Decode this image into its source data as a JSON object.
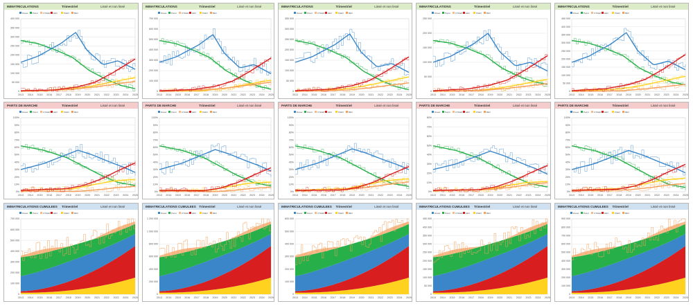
{
  "colors": {
    "rowHeaders": [
      "#dcebc8",
      "#f4cccc",
      "#cfe0f0"
    ],
    "Diesel": "#3a86c8",
    "Petrol": "#27b04a",
    "HEV": "#d81e1e",
    "PHEV": "#ffd21f",
    "BEV": "#f5a05a",
    "OTHER": "#f5b98a"
  },
  "legend": [
    "Diesel",
    "Petrol",
    "OTHER",
    "HEV",
    "PHEV",
    "BEV"
  ],
  "rows": [
    {
      "title": "IMMATRICULATIONS",
      "period": "Trimestriel",
      "label": "Lissé et non lissé",
      "panels": [
        {
          "yticks": [
            "400 000",
            "350 000",
            "300 000",
            "250 000",
            "200 000",
            "150 000",
            "100 000",
            "50 000",
            "0"
          ]
        },
        {
          "yticks": [
            "700 000",
            "600 000",
            "500 000",
            "400 000",
            "300 000",
            "200 000",
            "100 000",
            "0"
          ]
        },
        {
          "yticks": [
            "350 000",
            "300 000",
            "250 000",
            "200 000",
            "150 000",
            "100 000",
            "50 000",
            "0"
          ]
        },
        {
          "yticks": [
            "250 000",
            "200 000",
            "150 000",
            "100 000",
            "50 000",
            "0"
          ]
        },
        {
          "yticks": [
            "450 000",
            "400 000",
            "350 000",
            "300 000",
            "250 000",
            "200 000",
            "150 000",
            "100 000",
            "50 000",
            "0"
          ]
        }
      ]
    },
    {
      "title": "PARTS DE MARCHE",
      "period": "Trimestriel",
      "label": "Lissé et non lissé",
      "panels": [
        {
          "yticks": [
            "100%",
            "90%",
            "80%",
            "70%",
            "60%",
            "50%",
            "40%",
            "30%",
            "20%",
            "10%",
            "0%"
          ]
        },
        {
          "yticks": [
            "100%",
            "90%",
            "80%",
            "70%",
            "60%",
            "50%",
            "40%",
            "30%",
            "20%",
            "10%",
            "0%"
          ]
        },
        {
          "yticks": [
            "100%",
            "90%",
            "80%",
            "70%",
            "60%",
            "50%",
            "40%",
            "30%",
            "20%",
            "10%",
            "0%"
          ]
        },
        {
          "yticks": [
            "80%",
            "70%",
            "60%",
            "50%",
            "40%",
            "30%",
            "20%",
            "10%",
            "0%"
          ]
        },
        {
          "yticks": [
            "100%",
            "90%",
            "80%",
            "70%",
            "60%",
            "50%",
            "40%",
            "30%",
            "20%",
            "10%",
            "0%"
          ]
        }
      ]
    },
    {
      "title": "IMMATRICULATIONS CUMULEES",
      "period": "Trimestriel",
      "label": "Lissé et non lissé",
      "panels": [
        {
          "yticks": [
            "700 000",
            "600 000",
            "500 000",
            "400 000",
            "300 000",
            "200 000",
            "100 000",
            "0"
          ]
        },
        {
          "yticks": [
            "1 200 000",
            "1 000 000",
            "800 000",
            "600 000",
            "400 000",
            "200 000",
            "0"
          ]
        },
        {
          "yticks": [
            "600 000",
            "500 000",
            "400 000",
            "300 000",
            "200 000",
            "100 000",
            "0"
          ]
        },
        {
          "yticks": [
            "450 000",
            "400 000",
            "350 000",
            "300 000",
            "250 000",
            "200 000",
            "150 000",
            "100 000",
            "50 000",
            "0"
          ]
        },
        {
          "yticks": [
            "900 000",
            "800 000",
            "700 000",
            "600 000",
            "500 000",
            "400 000",
            "300 000",
            "200 000",
            "100 000",
            "0"
          ]
        }
      ]
    }
  ],
  "chart_data": {
    "type": "line",
    "x": [
      "2013",
      "2014",
      "2015",
      "2016",
      "2017",
      "2018",
      "2019",
      "2020",
      "2021",
      "2022",
      "2023",
      "2024",
      "2025"
    ],
    "series": [
      {
        "name": "Diesel",
        "values": [
          160,
          200,
          250,
          310,
          330,
          280,
          210,
          160,
          140,
          120,
          110,
          100,
          95
        ]
      },
      {
        "name": "Petrol",
        "values": [
          290,
          270,
          240,
          200,
          160,
          120,
          90,
          60,
          45,
          35,
          30,
          25,
          20
        ]
      },
      {
        "name": "HEV",
        "values": [
          5,
          8,
          12,
          20,
          30,
          45,
          65,
          85,
          110,
          140,
          170,
          200,
          220
        ]
      },
      {
        "name": "PHEV",
        "values": [
          2,
          3,
          5,
          8,
          12,
          18,
          25,
          35,
          50,
          60,
          70,
          80,
          85
        ]
      },
      {
        "name": "BEV",
        "values": [
          1,
          2,
          3,
          5,
          8,
          12,
          18,
          25,
          35,
          45,
          50,
          55,
          60
        ]
      }
    ]
  }
}
